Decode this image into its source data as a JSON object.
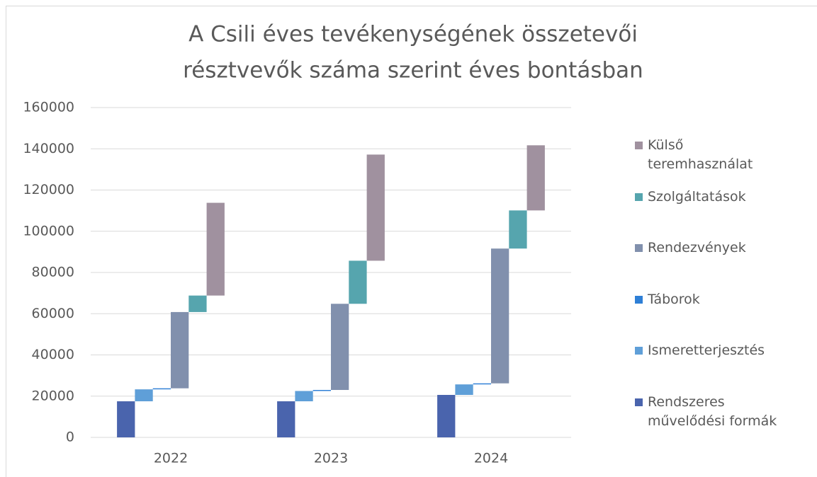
{
  "chart_data": {
    "type": "waterfall",
    "title": [
      "A Csili éves tevékenységének összetevői",
      "résztvevők száma szerint éves bontásban"
    ],
    "categories": [
      "2022",
      "2023",
      "2024"
    ],
    "series": [
      {
        "name": "Rendszeres művelődési formák",
        "color": "#4a64ad",
        "values": [
          17500,
          17500,
          20600
        ]
      },
      {
        "name": "Ismeretterjesztés",
        "color": "#5f9fd8",
        "values": [
          5800,
          5000,
          5100
        ]
      },
      {
        "name": "Táborok",
        "color": "#2e7fd6",
        "values": [
          500,
          500,
          500
        ]
      },
      {
        "name": "Rendezvények",
        "color": "#8190ad",
        "values": [
          37000,
          41800,
          65400
        ]
      },
      {
        "name": "Szolgáltatások",
        "color": "#56a5ae",
        "values": [
          8000,
          20900,
          18500
        ]
      },
      {
        "name": "Külső teremhasználat",
        "color": "#a0919f",
        "values": [
          45000,
          51500,
          31600
        ]
      }
    ],
    "ylim": [
      0,
      160000
    ],
    "yticks": [
      0,
      20000,
      40000,
      60000,
      80000,
      100000,
      120000,
      140000,
      160000
    ],
    "grid": true
  }
}
